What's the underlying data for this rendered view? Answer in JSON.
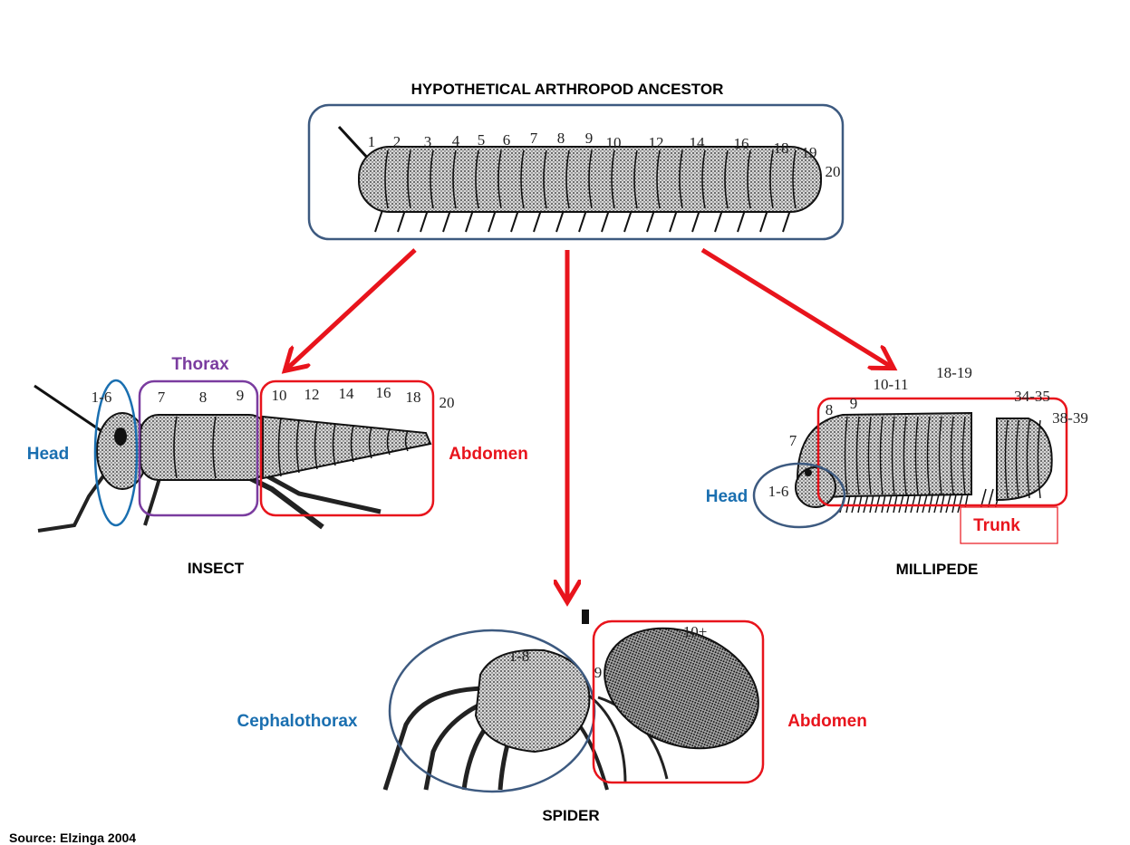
{
  "titles": {
    "ancestor": "HYPOTHETICAL ARTHROPOD ANCESTOR",
    "insect": "INSECT",
    "millipede": "MILLIPEDE",
    "spider": "SPIDER"
  },
  "ancestor_segments": [
    "1",
    "2",
    "3",
    "4",
    "5",
    "6",
    "7",
    "8",
    "9",
    "10",
    "12",
    "14",
    "16",
    "18",
    "19",
    "20"
  ],
  "insect": {
    "head": "Head",
    "thorax": "Thorax",
    "abdomen": "Abdomen",
    "numbers": [
      "1-6",
      "7",
      "8",
      "9",
      "10",
      "12",
      "14",
      "16",
      "18",
      "20"
    ]
  },
  "millipede": {
    "head": "Head",
    "trunk": "Trunk",
    "numbers": [
      "1-6",
      "7",
      "8",
      "9",
      "10-11",
      "18-19",
      "34-35",
      "38-39"
    ]
  },
  "spider": {
    "cephalothorax": "Cephalothorax",
    "abdomen": "Abdomen",
    "numbers": [
      "1-8",
      "9",
      "10+"
    ]
  },
  "source": "Source: Elzinga 2004",
  "colors": {
    "blue": "#1a6fb0",
    "purple": "#7a3c9f",
    "red": "#e8141c",
    "navy": "#3d5a80"
  }
}
